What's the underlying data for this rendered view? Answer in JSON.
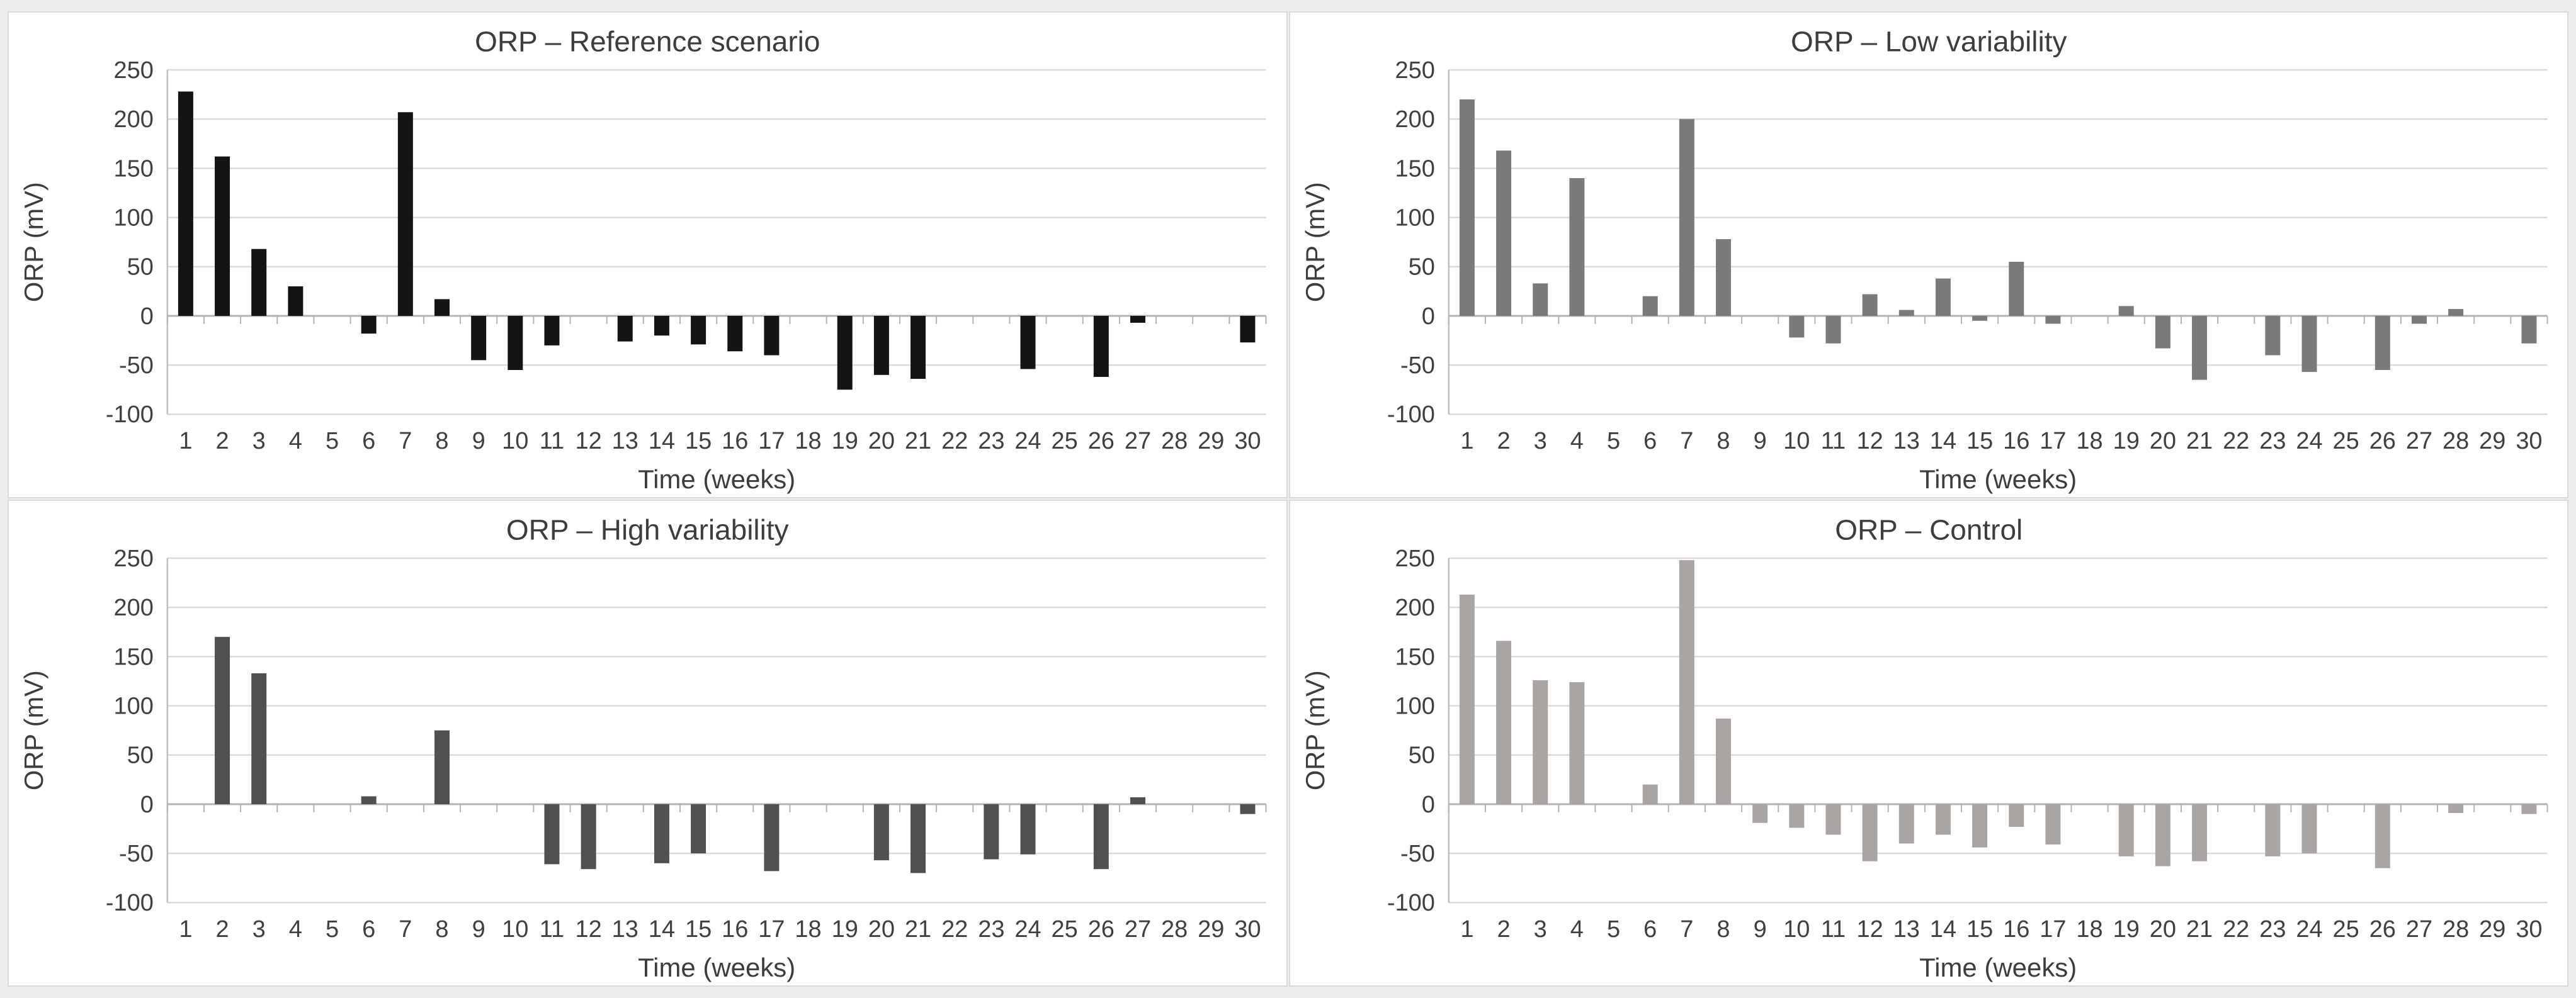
{
  "figure": {
    "background": "#ececec",
    "panel_background": "#ffffff",
    "panel_border_color": "#d9d9d9",
    "gridline_color": "#dadada",
    "axis_line_color": "#bfbfbf",
    "zero_line_color": "#b3b3b3",
    "text_color": "#404040",
    "title_color": "#3d3d3d"
  },
  "chart_data": [
    {
      "type": "bar",
      "title": "ORP – Reference scenario",
      "xlabel": "Time (weeks)",
      "ylabel": "ORP (mV)",
      "ylim": [
        -100,
        250
      ],
      "y_tick_values": [
        250,
        200,
        150,
        100,
        50,
        0,
        -50,
        -100
      ],
      "y_tick_labels": [
        "250",
        "200",
        "150",
        "100",
        "50",
        "0",
        "-50",
        "-100"
      ],
      "grid": true,
      "legend": false,
      "bar_color": "#141414",
      "categories": [
        "1",
        "2",
        "3",
        "4",
        "5",
        "6",
        "7",
        "8",
        "9",
        "10",
        "11",
        "12",
        "13",
        "14",
        "15",
        "16",
        "17",
        "18",
        "19",
        "20",
        "21",
        "22",
        "23",
        "24",
        "25",
        "26",
        "27",
        "28",
        "29",
        "30"
      ],
      "values": [
        228,
        162,
        68,
        30,
        0,
        -18,
        207,
        17,
        -45,
        -55,
        -30,
        0,
        -26,
        -20,
        -29,
        -36,
        -40,
        0,
        -75,
        -60,
        -64,
        0,
        0,
        -54,
        0,
        -62,
        -7,
        0,
        0,
        -27
      ]
    },
    {
      "type": "bar",
      "title": "ORP – Low variability",
      "xlabel": "Time (weeks)",
      "ylabel": "ORP (mV)",
      "ylim": [
        -100,
        250
      ],
      "y_tick_values": [
        250,
        200,
        150,
        100,
        50,
        0,
        -50,
        -100
      ],
      "y_tick_labels": [
        "250",
        "200",
        "150",
        "100",
        "50",
        "0",
        "-50",
        "-100"
      ],
      "grid": true,
      "legend": false,
      "bar_color": "#7a7a7a",
      "categories": [
        "1",
        "2",
        "3",
        "4",
        "5",
        "6",
        "7",
        "8",
        "9",
        "10",
        "11",
        "12",
        "13",
        "14",
        "15",
        "16",
        "17",
        "18",
        "19",
        "20",
        "21",
        "22",
        "23",
        "24",
        "25",
        "26",
        "27",
        "28",
        "29",
        "30"
      ],
      "values": [
        220,
        168,
        33,
        140,
        0,
        20,
        200,
        78,
        0,
        -22,
        -28,
        22,
        6,
        38,
        -5,
        55,
        -8,
        0,
        10,
        -33,
        -65,
        0,
        -40,
        -57,
        0,
        -55,
        -8,
        7,
        0,
        -28
      ]
    },
    {
      "type": "bar",
      "title": "ORP – High variability",
      "xlabel": "Time (weeks)",
      "ylabel": "ORP (mV)",
      "ylim": [
        -100,
        250
      ],
      "y_tick_values": [
        250,
        200,
        150,
        100,
        50,
        0,
        -50,
        -100
      ],
      "y_tick_labels": [
        "250",
        "200",
        "150",
        "100",
        "50",
        "0",
        "-50",
        "-100"
      ],
      "grid": true,
      "legend": false,
      "bar_color": "#505050",
      "categories": [
        "1",
        "2",
        "3",
        "4",
        "5",
        "6",
        "7",
        "8",
        "9",
        "10",
        "11",
        "12",
        "13",
        "14",
        "15",
        "16",
        "17",
        "18",
        "19",
        "20",
        "21",
        "22",
        "23",
        "24",
        "25",
        "26",
        "27",
        "28",
        "29",
        "30"
      ],
      "values": [
        0,
        170,
        133,
        0,
        0,
        8,
        0,
        75,
        0,
        0,
        -61,
        -66,
        0,
        -60,
        -50,
        0,
        -68,
        0,
        0,
        -57,
        -70,
        0,
        -56,
        -51,
        0,
        -66,
        7,
        0,
        0,
        -10
      ]
    },
    {
      "type": "bar",
      "title": "ORP – Control",
      "xlabel": "Time (weeks)",
      "ylabel": "ORP (mV)",
      "ylim": [
        -100,
        250
      ],
      "y_tick_values": [
        250,
        200,
        150,
        100,
        50,
        0,
        -50,
        -100
      ],
      "y_tick_labels": [
        "250",
        "200",
        "150",
        "100",
        "50",
        "0",
        "-50",
        "-100"
      ],
      "grid": true,
      "legend": false,
      "bar_color": "#a9a5a2",
      "categories": [
        "1",
        "2",
        "3",
        "4",
        "5",
        "6",
        "7",
        "8",
        "9",
        "10",
        "11",
        "12",
        "13",
        "14",
        "15",
        "16",
        "17",
        "18",
        "19",
        "20",
        "21",
        "22",
        "23",
        "24",
        "25",
        "26",
        "27",
        "28",
        "29",
        "30"
      ],
      "values": [
        213,
        166,
        126,
        124,
        0,
        20,
        248,
        87,
        -19,
        -24,
        -31,
        -58,
        -40,
        -31,
        -44,
        -23,
        -41,
        0,
        -53,
        -63,
        -58,
        0,
        -53,
        -50,
        0,
        -65,
        0,
        -9,
        0,
        -10
      ]
    }
  ]
}
